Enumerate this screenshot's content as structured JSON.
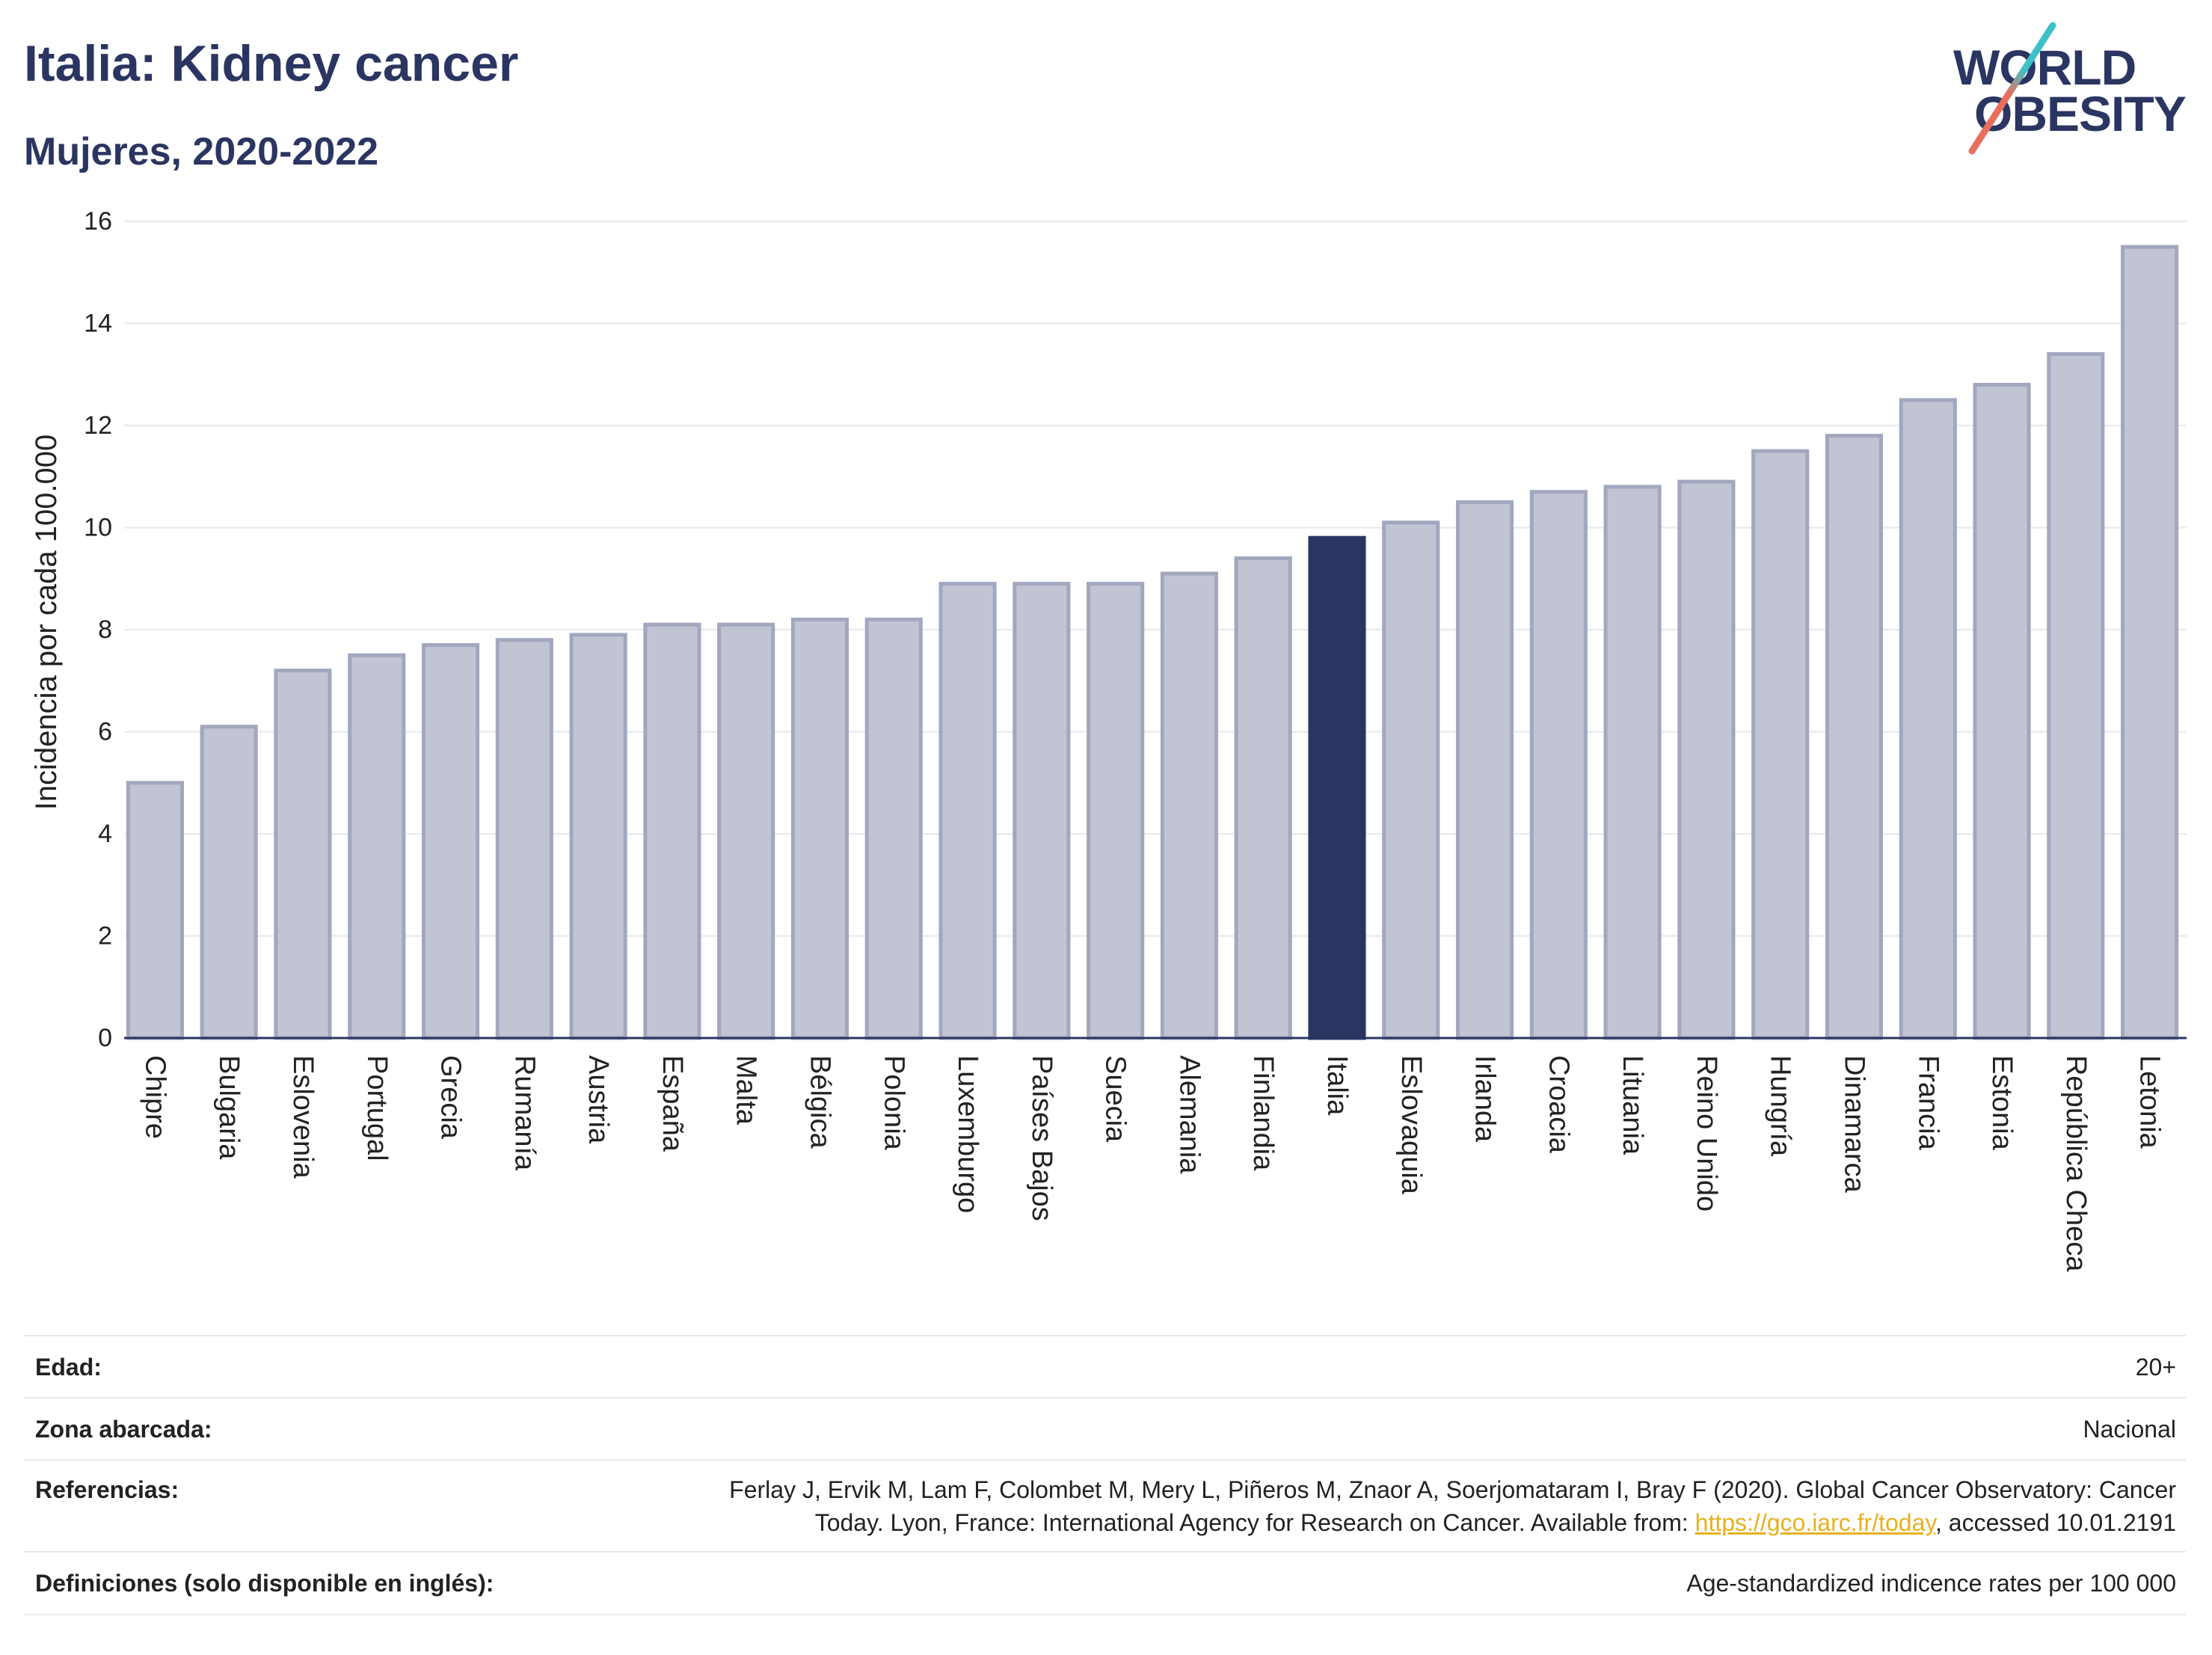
{
  "logo": {
    "line1": "WORLD",
    "line2": "OBESITY",
    "colors": {
      "text": "#2b3561",
      "slash_top": "#3cc1c6",
      "slash_bottom": "#e96f5d"
    }
  },
  "chart_data": {
    "type": "bar",
    "title": "Italia: Kidney cancer",
    "subtitle": "Mujeres, 2020-2022",
    "xlabel": "",
    "ylabel": "Incidencia por cada 100.000",
    "ylim": [
      0,
      16
    ],
    "yticks": [
      0,
      2,
      4,
      6,
      8,
      10,
      12,
      14,
      16
    ],
    "grid": true,
    "highlight": "Italia",
    "categories": [
      "Chipre",
      "Bulgaria",
      "Eslovenia",
      "Portugal",
      "Grecia",
      "Rumanía",
      "Austria",
      "España",
      "Malta",
      "Bélgica",
      "Polonia",
      "Luxemburgo",
      "Países Bajos",
      "Suecia",
      "Alemania",
      "Finlandia",
      "Italia",
      "Eslovaquia",
      "Irlanda",
      "Croacia",
      "Lituania",
      "Reino Unido",
      "Hungría",
      "Dinamarca",
      "Francia",
      "Estonia",
      "República Checa",
      "Letonia"
    ],
    "values": [
      5.0,
      6.1,
      7.2,
      7.5,
      7.7,
      7.8,
      7.9,
      8.1,
      8.1,
      8.2,
      8.2,
      8.9,
      8.9,
      8.9,
      9.1,
      9.4,
      9.8,
      10.1,
      10.5,
      10.7,
      10.8,
      10.9,
      11.5,
      11.8,
      12.5,
      12.8,
      13.4,
      15.5
    ],
    "colors": {
      "bar": "#c1c4d2",
      "bar_border": "#a2a7bf",
      "highlight": "#2b3561",
      "grid": "#e9ebef",
      "axis": "#2b3561"
    }
  },
  "details": {
    "age": {
      "label": "Edad:",
      "value": "20+"
    },
    "area": {
      "label": "Zona abarcada:",
      "value": "Nacional"
    },
    "references": {
      "label": "Referencias:",
      "line1": "Ferlay J, Ervik M, Lam F, Colombet M, Mery L, Piñeros M, Znaor A, Soerjomataram I, Bray F (2020). Global Cancer Observatory: Cancer",
      "line2_prefix": "Today. Lyon, France: International Agency for Research on Cancer. Available from: ",
      "link": "https://gco.iarc.fr/today",
      "line2_suffix": ", accessed 10.01.2191",
      "link_color": "#e6b11e"
    },
    "definitions": {
      "label": "Definiciones (solo disponible en inglés):",
      "value": "Age-standardized indicence rates per 100 000"
    }
  }
}
